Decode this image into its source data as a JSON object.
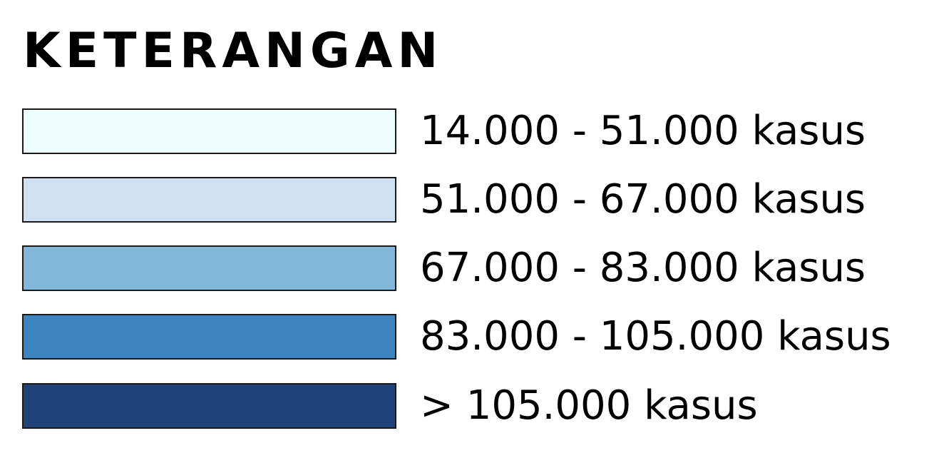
{
  "legend": {
    "title": "KETERANGAN",
    "items": [
      {
        "label": "14.000 - 51.000 kasus",
        "color": "#eefefe"
      },
      {
        "label": "51.000 - 67.000 kasus",
        "color": "#cfe0f2"
      },
      {
        "label": "67.000 - 83.000 kasus",
        "color": "#80b7db"
      },
      {
        "label": "83.000 - 105.000 kasus",
        "color": "#3d85c1"
      },
      {
        "label": "> 105.000 kasus",
        "color": "#1f4379"
      }
    ]
  }
}
